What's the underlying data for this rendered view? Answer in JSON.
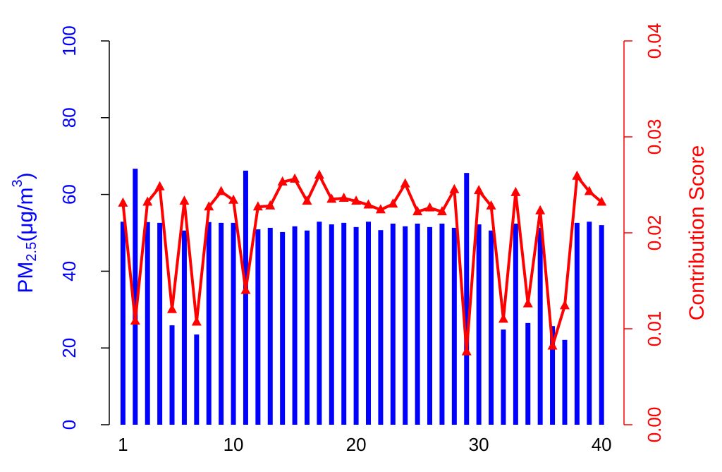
{
  "chart_data": {
    "type": "bar",
    "ylabel_parts": [
      "PM",
      "2.5",
      "(μg/m",
      "3",
      ")"
    ],
    "y2label": "Contribution Score",
    "x": [
      1,
      2,
      3,
      4,
      5,
      6,
      7,
      8,
      9,
      10,
      11,
      12,
      13,
      14,
      15,
      16,
      17,
      18,
      19,
      20,
      21,
      22,
      23,
      24,
      25,
      26,
      27,
      28,
      29,
      30,
      31,
      32,
      33,
      34,
      35,
      36,
      37,
      38,
      39,
      40
    ],
    "xlim": [
      0,
      42
    ],
    "xticks": [
      1,
      10,
      20,
      30,
      40
    ],
    "ylim": [
      0,
      100
    ],
    "yticks": [
      0,
      20,
      40,
      60,
      80,
      100
    ],
    "y2lim": [
      0,
      0.04
    ],
    "y2ticks": [
      {
        "value": 0,
        "label": "0.00"
      },
      0.01,
      0.02,
      0.03,
      0.04
    ],
    "series": [
      {
        "type": "bar",
        "color": "#0000ff",
        "values": [
          52.9,
          66.7,
          52.8,
          52.6,
          25.9,
          50.6,
          23.5,
          52.8,
          52.6,
          52.6,
          66.2,
          50.9,
          51.3,
          50.2,
          51.7,
          50.6,
          52.9,
          52.2,
          52.6,
          51.5,
          52.9,
          50.7,
          52.4,
          51.7,
          52.4,
          51.5,
          52.4,
          51.3,
          65.6,
          52.2,
          50.6,
          24.8,
          52.4,
          26.5,
          51.3,
          25.7,
          22.1,
          52.6,
          52.9,
          52.0
        ]
      },
      {
        "type": "line",
        "color": "#ff0000",
        "axis": "y2",
        "values": [
          0.0231,
          0.0108,
          0.0232,
          0.0248,
          0.012,
          0.0233,
          0.0107,
          0.0227,
          0.0243,
          0.0234,
          0.014,
          0.0227,
          0.0228,
          0.0253,
          0.0256,
          0.0233,
          0.026,
          0.0235,
          0.0236,
          0.0233,
          0.0229,
          0.0224,
          0.023,
          0.0251,
          0.0222,
          0.0226,
          0.0222,
          0.0245,
          0.0076,
          0.0244,
          0.0228,
          0.011,
          0.0242,
          0.0126,
          0.0223,
          0.0082,
          0.0124,
          0.0259,
          0.0243,
          0.0232
        ]
      }
    ]
  }
}
